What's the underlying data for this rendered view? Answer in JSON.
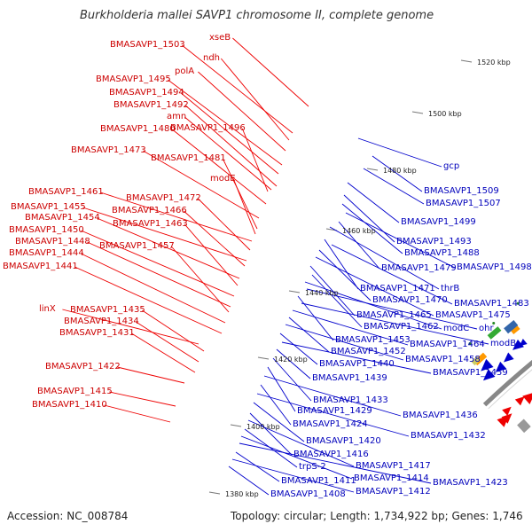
{
  "title": "Burkholderia mallei SAVP1 chromosome II, complete genome",
  "accession_text": "Accession: NC_008784",
  "summary_text": "Topology: circular; Length: 1,734,922 bp; Genes: 1,746",
  "colors": {
    "forward_strand": "#ee0000",
    "reverse_strand": "#0000cc",
    "backbone": "#888888"
  },
  "ticks": [
    "1520 kbp",
    "1500 kbp",
    "1480 kbp",
    "1460 kbp",
    "1440 kbp",
    "1420 kbp",
    "1400 kbp",
    "1380 kbp"
  ],
  "forward_labels": [
    "xseB",
    "BMASAVP1_1503",
    "ndh",
    "polA",
    "BMASAVP1_1495",
    "BMASAVP1_1494",
    "BMASAVP1_1492",
    "amn",
    "BMASAVP1_1496",
    "BMASAVP1_1480",
    "BMASAVP1_1473",
    "BMASAVP1_1481",
    "modE",
    "BMASAVP1_1461",
    "BMASAVP1_1472",
    "BMASAVP1_1455",
    "BMASAVP1_1466",
    "BMASAVP1_1454",
    "BMASAVP1_1463",
    "BMASAVP1_1450",
    "BMASAVP1_1448",
    "BMASAVP1_1457",
    "BMASAVP1_1444",
    "BMASAVP1_1441",
    "linX",
    "BMASAVP1_1435",
    "BMASAVP1_1434",
    "BMASAVP1_1431",
    "BMASAVP1_1422",
    "BMASAVP1_1415",
    "BMASAVP1_1410"
  ],
  "reverse_labels": [
    "gcp",
    "BMASAVP1_1509",
    "BMASAVP1_1507",
    "BMASAVP1_1499",
    "BMASAVP1_1493",
    "BMASAVP1_1488",
    "BMASAVP1_1498",
    "BMASAVP1_1479",
    "thrB",
    "BMASAVP1_1471",
    "BMASAVP1_1483",
    "BMASAVP1_1470",
    "BMASAVP1_1475",
    "BMASAVP1_1465",
    "BMASAVP1_1462",
    "modC",
    "ohr",
    "BMASAVP1_1453",
    "modB",
    "BMASAVP1_1464",
    "BMASAVP1_1452",
    "BMASAVP1_1458",
    "BMASAVP1_1440",
    "BMASAVP1_1459",
    "BMASAVP1_1439",
    "BMASAVP1_1433",
    "BMASAVP1_1429",
    "BMASAVP1_1436",
    "BMASAVP1_1424",
    "BMASAVP1_1432",
    "BMASAVP1_1420",
    "BMASAVP1_1416",
    "BMASAVP1_1417",
    "trpS-2",
    "BMASAVP1_1414",
    "BMASAVP1_1423",
    "BMASAVP1_1411",
    "BMASAVP1_1412",
    "BMASAVP1_1408"
  ]
}
